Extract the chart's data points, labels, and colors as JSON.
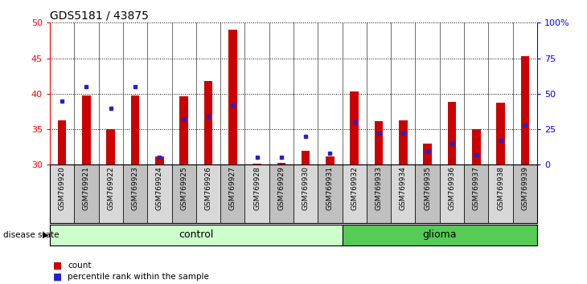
{
  "title": "GDS5181 / 43875",
  "samples": [
    "GSM769920",
    "GSM769921",
    "GSM769922",
    "GSM769923",
    "GSM769924",
    "GSM769925",
    "GSM769926",
    "GSM769927",
    "GSM769928",
    "GSM769929",
    "GSM769930",
    "GSM769931",
    "GSM769932",
    "GSM769933",
    "GSM769934",
    "GSM769935",
    "GSM769936",
    "GSM769937",
    "GSM769938",
    "GSM769939"
  ],
  "counts": [
    36.2,
    39.8,
    35.0,
    39.8,
    31.2,
    39.6,
    41.8,
    49.0,
    30.2,
    30.3,
    32.0,
    31.2,
    40.3,
    36.1,
    36.2,
    33.0,
    38.8,
    35.0,
    38.7,
    45.3
  ],
  "percentiles": [
    45,
    55,
    40,
    55,
    5,
    32,
    34,
    42,
    5,
    5,
    20,
    8,
    30,
    22,
    22,
    10,
    15,
    7,
    17,
    28
  ],
  "ylim_left": [
    30,
    50
  ],
  "ylim_right": [
    0,
    100
  ],
  "yticks_left": [
    30,
    35,
    40,
    45,
    50
  ],
  "yticks_right": [
    0,
    25,
    50,
    75,
    100
  ],
  "n_control": 12,
  "n_glioma": 8,
  "bar_color": "#cc0000",
  "dot_color": "#2222cc",
  "control_color": "#ccffcc",
  "glioma_color": "#55cc55",
  "label_bg_even": "#d8d8d8",
  "label_bg_odd": "#c0c0c0",
  "legend_count": "count",
  "legend_pct": "percentile rank within the sample",
  "disease_state_label": "disease state",
  "control_label": "control",
  "glioma_label": "glioma"
}
